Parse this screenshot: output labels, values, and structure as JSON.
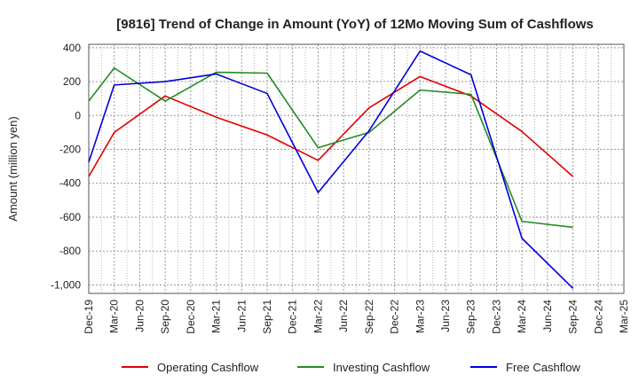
{
  "chart_data": {
    "type": "line",
    "title": "[9816]  Trend of Change in Amount (YoY) of 12Mo Moving Sum of Cashflows",
    "xlabel": "",
    "ylabel": "Amount (million yen)",
    "ylim": [
      -1050,
      420
    ],
    "yticks": [
      400,
      200,
      0,
      -200,
      -400,
      -600,
      -800,
      -1000
    ],
    "ytick_labels": [
      "400",
      "200",
      "0",
      "-200",
      "-400",
      "-600",
      "-800",
      "-1,000"
    ],
    "categories": [
      "Dec-19",
      "Mar-20",
      "Jun-20",
      "Sep-20",
      "Dec-20",
      "Mar-21",
      "Jun-21",
      "Sep-21",
      "Dec-21",
      "Mar-22",
      "Jun-22",
      "Sep-22",
      "Dec-22",
      "Mar-23",
      "Jun-23",
      "Sep-23",
      "Dec-23",
      "Mar-24",
      "Jun-24",
      "Sep-24",
      "Dec-24",
      "Mar-25"
    ],
    "grid": true,
    "legend_position": "bottom",
    "series": [
      {
        "name": "Operating Cashflow",
        "color": "#e00000",
        "points": [
          {
            "x": "Dec-19",
            "y": -360
          },
          {
            "x": "Mar-20",
            "y": -100
          },
          {
            "x": "Sep-20",
            "y": 115
          },
          {
            "x": "Mar-21",
            "y": -10
          },
          {
            "x": "Sep-21",
            "y": -115
          },
          {
            "x": "Mar-22",
            "y": -265
          },
          {
            "x": "Sep-22",
            "y": 45
          },
          {
            "x": "Mar-23",
            "y": 230
          },
          {
            "x": "Sep-23",
            "y": 115
          },
          {
            "x": "Mar-24",
            "y": -95
          },
          {
            "x": "Sep-24",
            "y": -360
          }
        ]
      },
      {
        "name": "Investing Cashflow",
        "color": "#228b22",
        "points": [
          {
            "x": "Dec-19",
            "y": 85
          },
          {
            "x": "Mar-20",
            "y": 280
          },
          {
            "x": "Sep-20",
            "y": 85
          },
          {
            "x": "Mar-21",
            "y": 255
          },
          {
            "x": "Sep-21",
            "y": 250
          },
          {
            "x": "Mar-22",
            "y": -190
          },
          {
            "x": "Sep-22",
            "y": -100
          },
          {
            "x": "Mar-23",
            "y": 150
          },
          {
            "x": "Sep-23",
            "y": 125
          },
          {
            "x": "Mar-24",
            "y": -625
          },
          {
            "x": "Sep-24",
            "y": -660
          }
        ]
      },
      {
        "name": "Free Cashflow",
        "color": "#0000dd",
        "points": [
          {
            "x": "Dec-19",
            "y": -275
          },
          {
            "x": "Mar-20",
            "y": 180
          },
          {
            "x": "Sep-20",
            "y": 200
          },
          {
            "x": "Mar-21",
            "y": 245
          },
          {
            "x": "Sep-21",
            "y": 130
          },
          {
            "x": "Mar-22",
            "y": -455
          },
          {
            "x": "Sep-22",
            "y": -90
          },
          {
            "x": "Mar-23",
            "y": 380
          },
          {
            "x": "Sep-23",
            "y": 240
          },
          {
            "x": "Mar-24",
            "y": -725
          },
          {
            "x": "Sep-24",
            "y": -1020
          }
        ]
      }
    ]
  }
}
